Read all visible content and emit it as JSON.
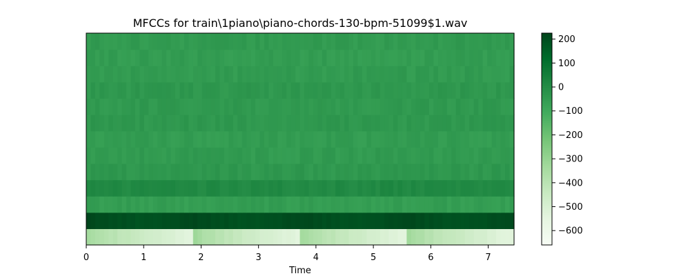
{
  "chart_data": {
    "type": "heatmap",
    "title": "MFCCs for train\\1piano\\piano-chords-130-bpm-51099$1.wav",
    "xlabel": "Time",
    "ylabel": "",
    "xlim": [
      0,
      7.45
    ],
    "x_ticks": [
      0,
      1,
      2,
      3,
      4,
      5,
      6,
      7
    ],
    "x_tick_labels": [
      "0",
      "1",
      "2",
      "3",
      "4",
      "5",
      "6",
      "7"
    ],
    "y_ticks_visible": false,
    "n_coefficients": 13,
    "segment_boundaries": [
      0,
      1.86,
      3.72,
      5.58,
      7.45
    ],
    "coefficient_values": [
      -450,
      215,
      -60,
      10,
      -40,
      -50,
      -55,
      -40,
      -45,
      -40,
      -50,
      -55,
      -50
    ],
    "colormap": "Greens",
    "colors": [
      "#f7fcf5",
      "#e5f5e0",
      "#c7e9c0",
      "#a1d99b",
      "#74c476",
      "#41ab5d",
      "#238b45",
      "#006d2c",
      "#00441b"
    ],
    "colorbar": {
      "vmin": -660,
      "vmax": 225,
      "ticks": [
        200,
        100,
        0,
        -100,
        -200,
        -300,
        -400,
        -500,
        -600
      ],
      "tick_labels": [
        "200",
        "100",
        "0",
        "−100",
        "−200",
        "−300",
        "−400",
        "−500",
        "−600"
      ]
    },
    "grid": false,
    "legend": "none"
  }
}
